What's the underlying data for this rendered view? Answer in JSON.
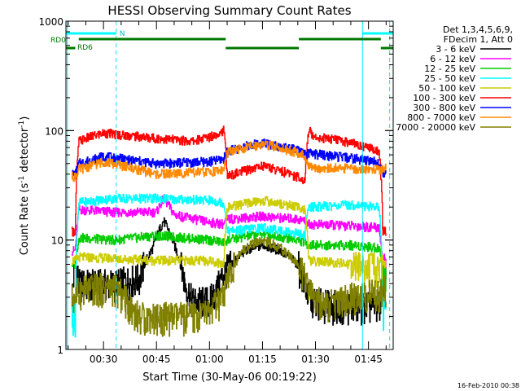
{
  "chart_data": {
    "type": "line",
    "title": "HESSI Observing Summary Count Rates",
    "xlabel": "Start Time (30-May-06 00:19:22)",
    "ylabel_parts": [
      "Count Rate (s",
      "-1",
      " detector",
      "-1",
      ")"
    ],
    "yscale": "log",
    "ylim": [
      1,
      1000
    ],
    "yticks": [
      {
        "value": 1,
        "label": "1"
      },
      {
        "value": 10,
        "label": "10"
      },
      {
        "value": 100,
        "label": "100"
      },
      {
        "value": 1000,
        "label": "1000"
      }
    ],
    "xlim_minutes": [
      19.37,
      112.0
    ],
    "xticks": [
      {
        "minute": 30,
        "label": "00:30"
      },
      {
        "minute": 45,
        "label": "00:45"
      },
      {
        "minute": 60,
        "label": "01:00"
      },
      {
        "minute": 75,
        "label": "01:15"
      },
      {
        "minute": 90,
        "label": "01:30"
      },
      {
        "minute": 105,
        "label": "01:45"
      }
    ],
    "timestamp": "16-Feb-2010 00:38",
    "legend_header": [
      "Det 1,3,4,5,6,9,",
      "FDecim 1, Att 0"
    ],
    "series": [
      {
        "name": "3 - 6 keV",
        "color": "#000000",
        "x": [
          21,
          22,
          23,
          33,
          40,
          44,
          47,
          50,
          53,
          55,
          60,
          62,
          64,
          67,
          70,
          75,
          80,
          85,
          87,
          88,
          92,
          100,
          108,
          109,
          110
        ],
        "y": [
          3.0,
          6.0,
          4.0,
          4.0,
          4.5,
          8.5,
          15.0,
          9.0,
          4.0,
          2.8,
          2.8,
          3.5,
          5.0,
          6.5,
          8.0,
          9.0,
          8.0,
          6.0,
          4.0,
          3.0,
          2.6,
          2.5,
          2.5,
          4.0,
          4.0
        ]
      },
      {
        "name": "6 - 12 keV",
        "color": "#ff00ff",
        "x": [
          21,
          22,
          23,
          33,
          45,
          47,
          50,
          60,
          64,
          65,
          75,
          85,
          87,
          88,
          100,
          108,
          109,
          110
        ],
        "y": [
          8.0,
          8.0,
          19.0,
          18.0,
          18.0,
          24.0,
          17.0,
          14.5,
          14.0,
          15.5,
          16.5,
          15.5,
          15.0,
          14.0,
          13.5,
          13.0,
          5.5,
          5.5
        ]
      },
      {
        "name": "12 - 25 keV",
        "color": "#00cc00",
        "x": [
          21,
          22,
          23,
          33,
          45,
          60,
          64,
          65,
          75,
          85,
          87,
          88,
          100,
          108,
          109,
          110
        ],
        "y": [
          6.0,
          6.0,
          10.5,
          10.0,
          11.0,
          10.0,
          9.5,
          10.0,
          11.5,
          10.0,
          9.5,
          9.0,
          9.0,
          8.5,
          5.0,
          5.0
        ]
      },
      {
        "name": "25 - 50 keV",
        "color": "#00ffff",
        "x": [
          21,
          22,
          23,
          33,
          45,
          60,
          64,
          65,
          75,
          85,
          87,
          88,
          100,
          108,
          109,
          110
        ],
        "y": [
          2.0,
          2.0,
          22.0,
          24.0,
          24.0,
          23.0,
          22.0,
          12.0,
          13.0,
          11.5,
          11.0,
          20.0,
          21.0,
          20.0,
          2.2,
          2.2
        ]
      },
      {
        "name": "50 - 100 keV",
        "color": "#cccc00",
        "x": [
          21,
          22,
          23,
          33,
          45,
          60,
          64,
          65,
          75,
          85,
          87,
          88,
          100,
          108,
          109,
          110
        ],
        "y": [
          6.5,
          6.5,
          7.0,
          6.8,
          6.5,
          6.5,
          6.0,
          20.0,
          23.0,
          20.0,
          19.0,
          6.5,
          6.0,
          5.5,
          6.0,
          6.0
        ]
      },
      {
        "name": "100 - 300 keV",
        "color": "#ff0000",
        "x": [
          21,
          22,
          23,
          25,
          30,
          45,
          55,
          60,
          64,
          65,
          75,
          85,
          87,
          88,
          90,
          100,
          108,
          109,
          110
        ],
        "y": [
          12.0,
          12.0,
          80.0,
          85.0,
          95.0,
          85.0,
          80.0,
          88.0,
          100.0,
          38.0,
          48.0,
          38.0,
          34.0,
          100.0,
          88.0,
          78.0,
          65.0,
          12.0,
          12.0
        ]
      },
      {
        "name": "300 - 800 keV",
        "color": "#0000ff",
        "x": [
          21,
          22,
          23,
          30,
          45,
          60,
          64,
          65,
          75,
          85,
          87,
          88,
          100,
          108,
          109,
          110
        ],
        "y": [
          40.0,
          40.0,
          50.0,
          58.0,
          50.0,
          52.0,
          55.0,
          65.0,
          78.0,
          66.0,
          60.0,
          62.0,
          56.0,
          52.0,
          40.0,
          40.0
        ]
      },
      {
        "name": "800 - 7000 keV",
        "color": "#ff8800",
        "x": [
          21,
          22,
          23,
          30,
          45,
          60,
          64,
          65,
          75,
          85,
          87,
          88,
          100,
          108,
          109,
          110
        ],
        "y": [
          38.0,
          38.0,
          44.0,
          52.0,
          40.0,
          42.0,
          44.0,
          63.0,
          76.0,
          63.0,
          58.0,
          46.0,
          45.0,
          44.0,
          45.0,
          45.0
        ]
      },
      {
        "name": "7000 - 20000 keV",
        "color": "#808000",
        "x": [
          21,
          22,
          23,
          33,
          37,
          40,
          45,
          50,
          55,
          60,
          64,
          67,
          70,
          75,
          80,
          85,
          88,
          92,
          100,
          108,
          109,
          110
        ],
        "y": [
          3.0,
          3.0,
          3.5,
          3.8,
          2.6,
          2.0,
          2.0,
          2.0,
          2.0,
          2.2,
          3.0,
          6.0,
          8.5,
          10.0,
          8.5,
          6.0,
          3.5,
          2.5,
          3.0,
          3.3,
          3.5,
          3.5
        ]
      }
    ],
    "markers": {
      "cyan_vlines_solid_minutes": [
        19.8,
        103.3
      ],
      "cyan_vlines_dashed_minutes": [
        33.6,
        111.0
      ],
      "N_label": "N",
      "N_segments_minutes": [
        [
          19.37,
          33.6
        ],
        [
          103.3,
          112.0
        ]
      ],
      "RD0_label": "RD0",
      "RD6_label": "RD6",
      "green_upper_segments_minutes": [
        [
          23.0,
          64.6
        ],
        [
          85.3,
          108.5
        ]
      ],
      "green_lower_segments_minutes": [
        [
          19.37,
          22.0
        ],
        [
          64.6,
          85.3
        ],
        [
          108.5,
          112.0
        ]
      ]
    }
  }
}
